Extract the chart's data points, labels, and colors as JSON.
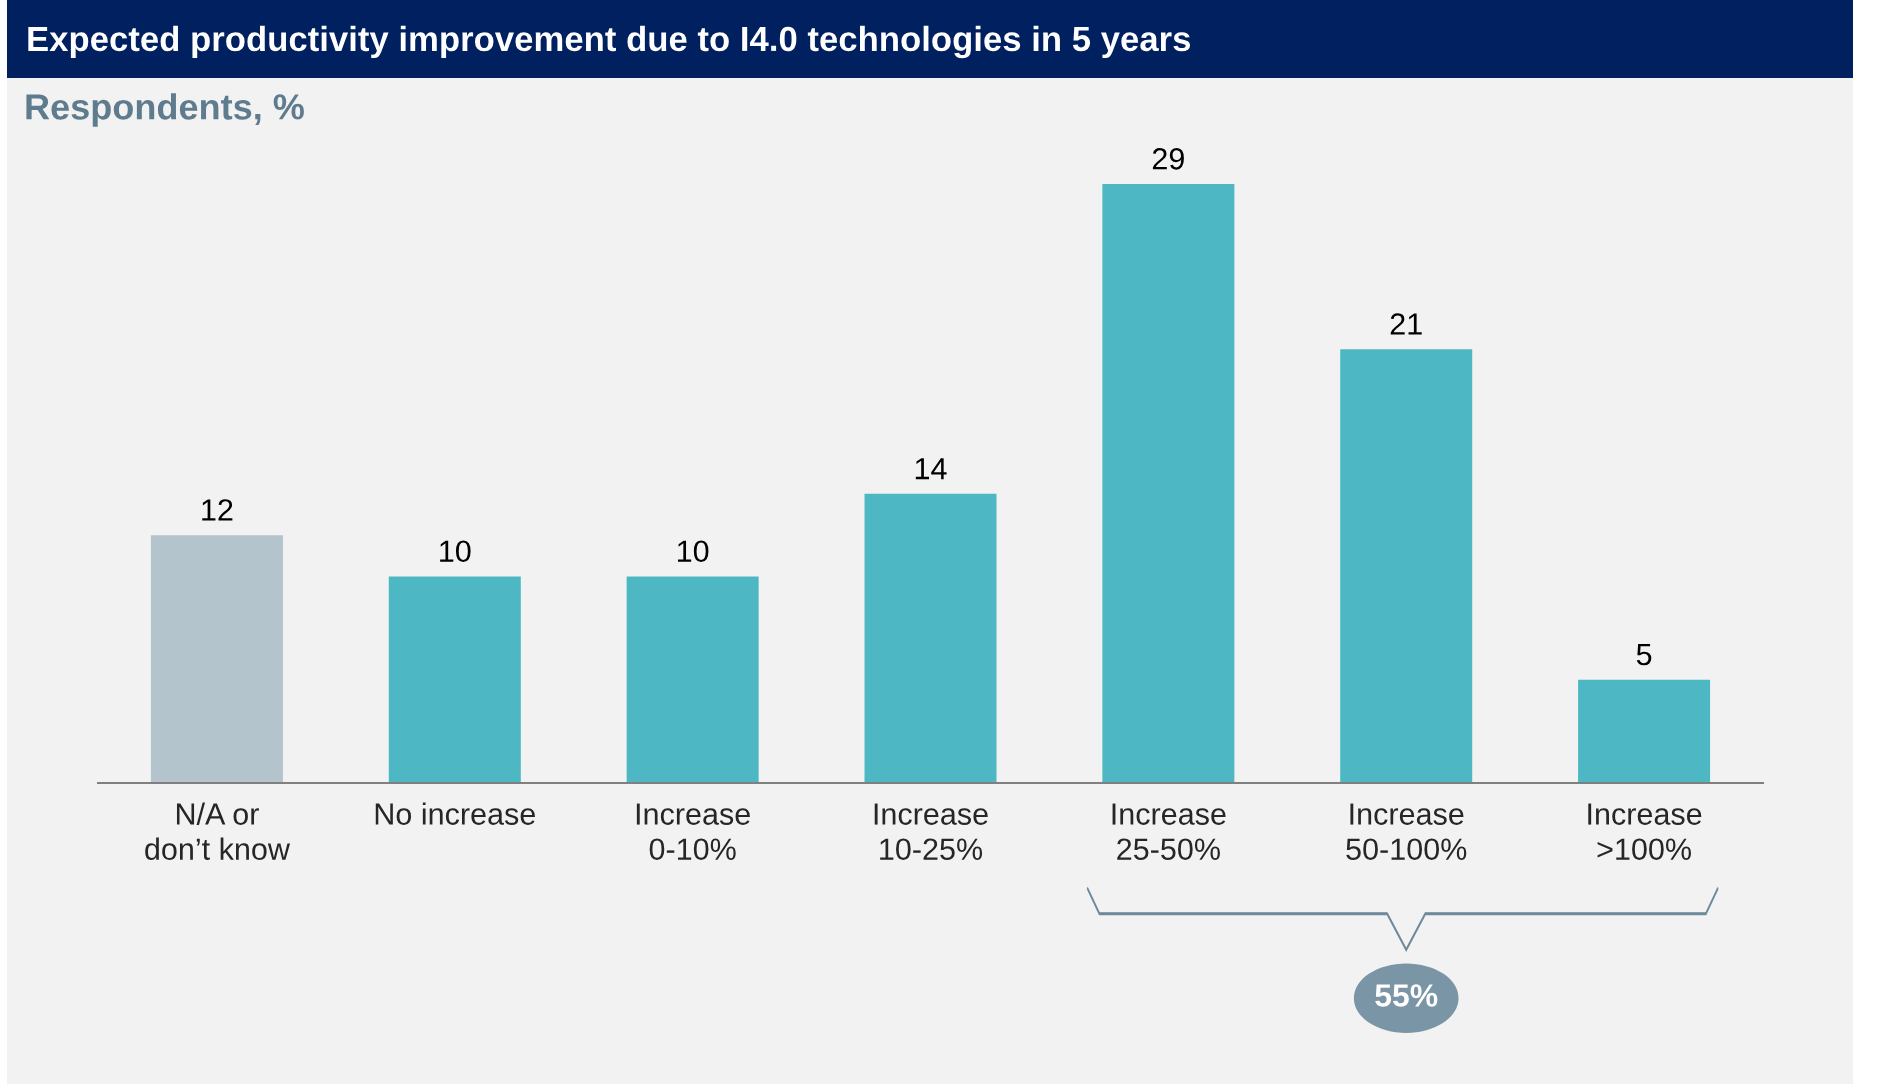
{
  "chart_data": {
    "type": "bar",
    "title": "Expected productivity improvement due to I4.0 technologies in 5 years",
    "subtitle": "Respondents, %",
    "categories": [
      "N/A or\ndon’t know",
      "No increase",
      "Increase\n0-10%",
      "Increase\n10-25%",
      "Increase\n25-50%",
      "Increase\n50-100%",
      "Increase\n>100%"
    ],
    "values": [
      12,
      10,
      10,
      14,
      29,
      21,
      5
    ],
    "colors": [
      "#b3c4cc",
      "#4db8c3",
      "#4db8c3",
      "#4db8c3",
      "#4db8c3",
      "#4db8c3",
      "#4db8c3"
    ],
    "data_labels": true,
    "grid": false,
    "legend": false,
    "annotations": [
      "55%"
    ]
  }
}
